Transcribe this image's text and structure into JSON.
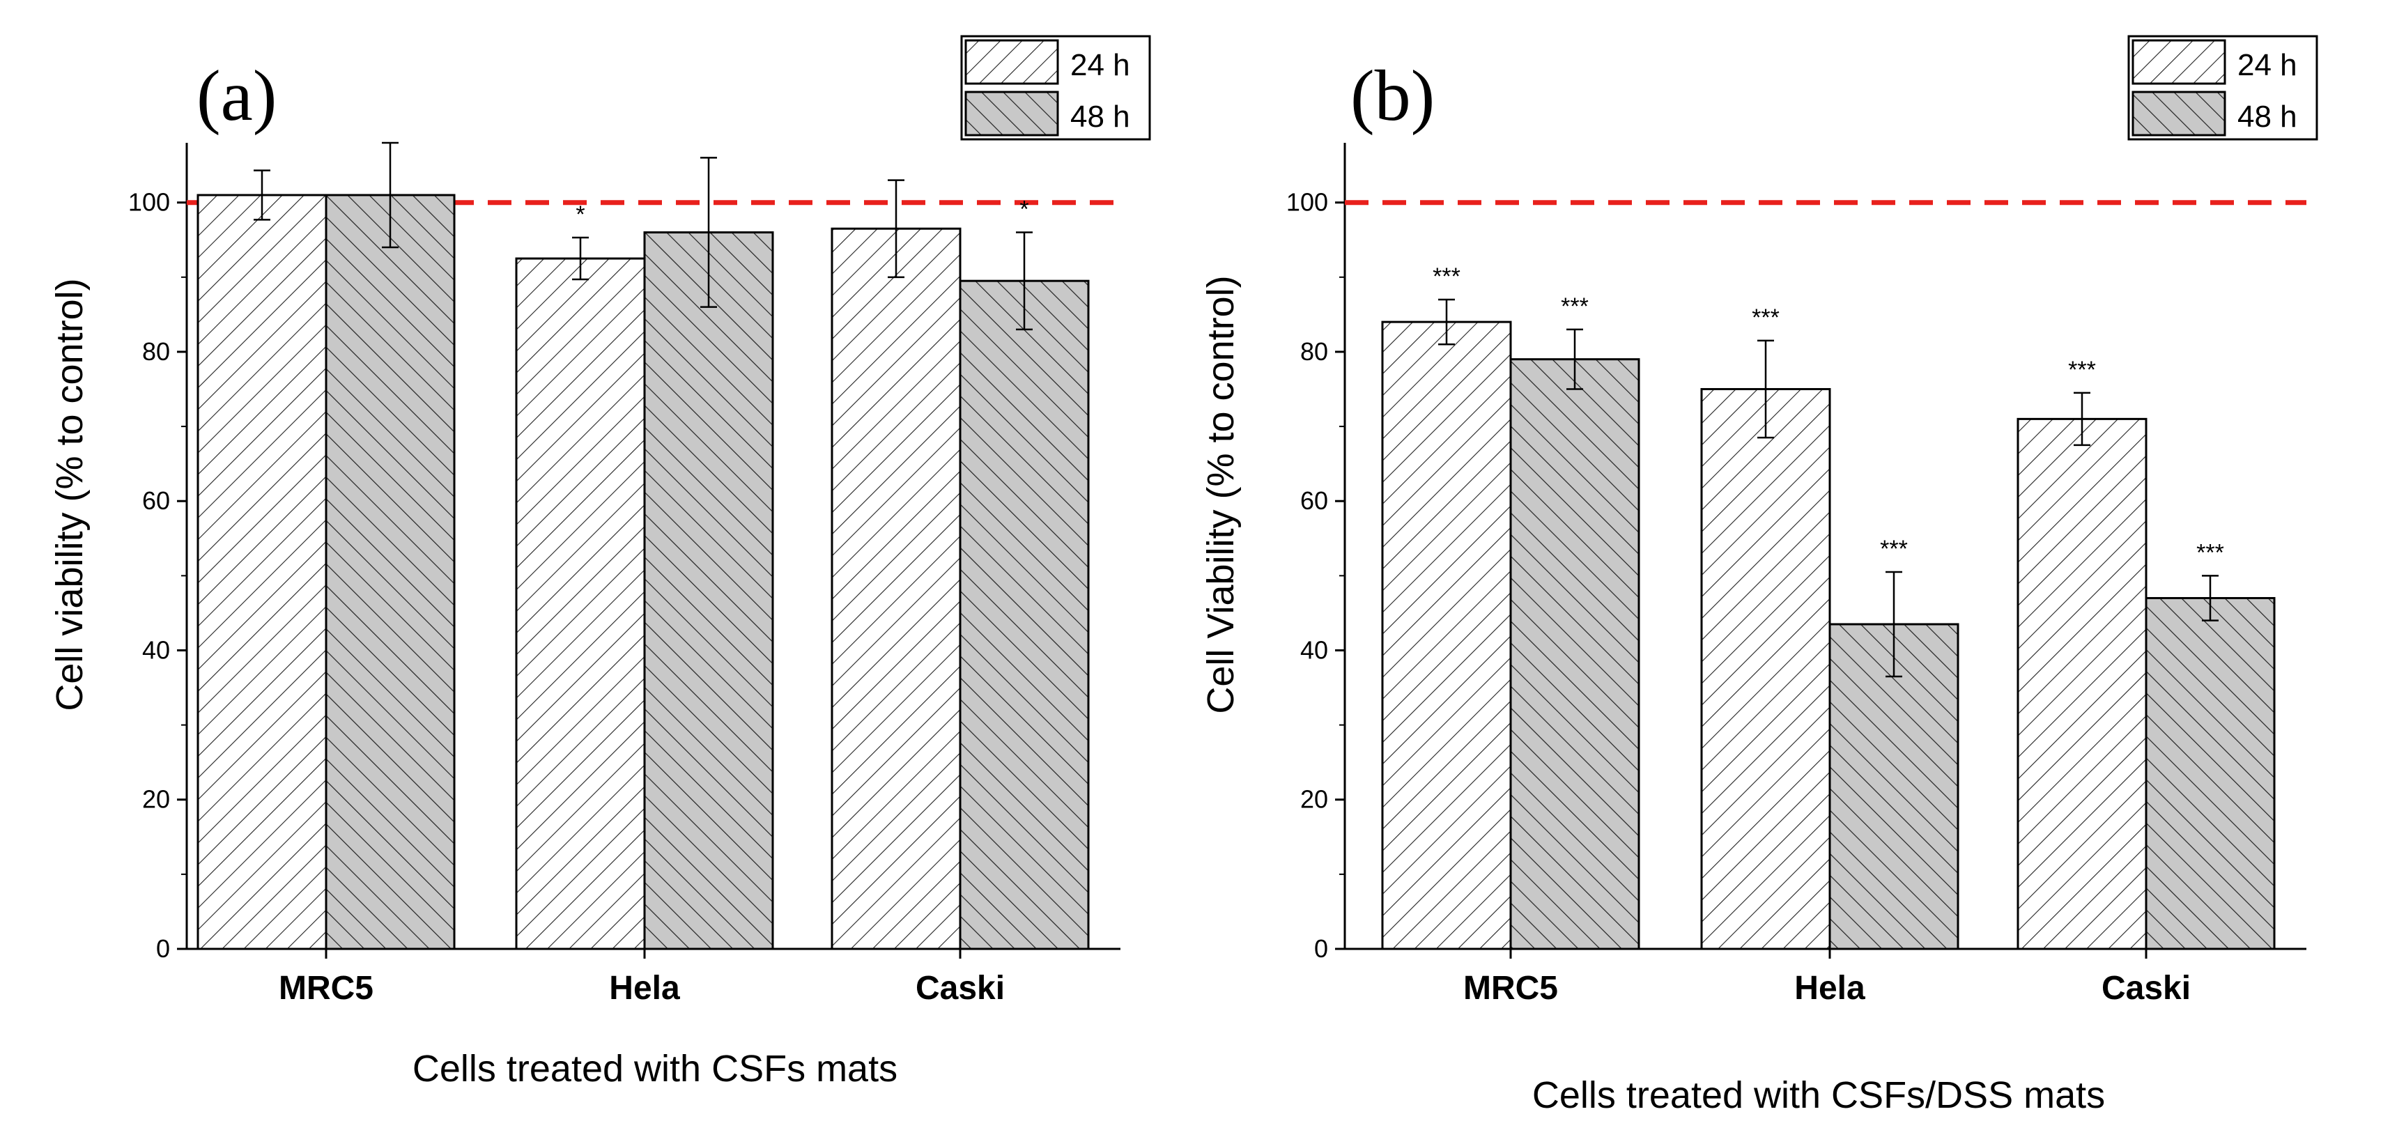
{
  "chart_data": [
    {
      "type": "bar",
      "panel_label": "(a)",
      "title": "",
      "xlabel": "Cells treated with CSFs mats",
      "ylabel": "Cell viability (% to control)",
      "categories": [
        "MRC5",
        "Hela",
        "Caski"
      ],
      "yticks": [
        0,
        20,
        40,
        60,
        80,
        100
      ],
      "ylim": [
        0,
        108
      ],
      "reference_line": 100,
      "series": [
        {
          "name": "24 h",
          "values": [
            101,
            92.5,
            96.5
          ],
          "errors": [
            3.3,
            2.8,
            6.5
          ],
          "significance": [
            "",
            "*",
            ""
          ]
        },
        {
          "name": "48 h",
          "values": [
            101,
            96,
            89.5
          ],
          "errors": [
            7.0,
            10.0,
            6.5
          ],
          "significance": [
            "",
            "",
            "*"
          ]
        }
      ],
      "legend": [
        "24 h",
        "48 h"
      ],
      "legend_position": "top-right"
    },
    {
      "type": "bar",
      "panel_label": "(b)",
      "title": "",
      "xlabel": "Cells treated with CSFs/DSS mats",
      "ylabel": "Cell Viability (% to control)",
      "categories": [
        "MRC5",
        "Hela",
        "Caski"
      ],
      "yticks": [
        0,
        20,
        40,
        60,
        80,
        100
      ],
      "ylim": [
        0,
        108
      ],
      "reference_line": 100,
      "series": [
        {
          "name": "24 h",
          "values": [
            84,
            75,
            71
          ],
          "errors": [
            3.0,
            6.5,
            3.5
          ],
          "significance": [
            "***",
            "***",
            "***"
          ]
        },
        {
          "name": "48 h",
          "values": [
            79,
            43.5,
            47
          ],
          "errors": [
            4.0,
            7.0,
            3.0
          ],
          "significance": [
            "***",
            "***",
            "***"
          ]
        }
      ],
      "legend": [
        "24 h",
        "48 h"
      ],
      "legend_position": "top-right"
    }
  ],
  "colors": {
    "bar_24h_fill": "#ffffff",
    "bar_48h_fill": "#c8c8c8",
    "reference_line": "#e8201c",
    "axis": "#000000"
  }
}
